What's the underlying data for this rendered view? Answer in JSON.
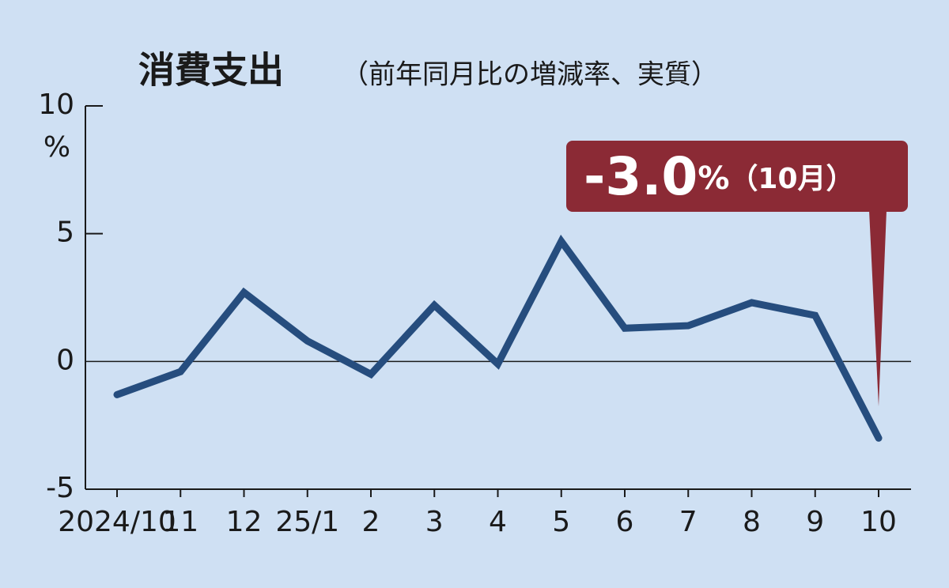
{
  "chart_data": {
    "type": "line",
    "title": "消費支出",
    "subtitle": "（前年同月比の増減率、実質）",
    "y_unit": "%",
    "categories": [
      "2024/10",
      "11",
      "12",
      "25/1",
      "2",
      "3",
      "4",
      "5",
      "6",
      "7",
      "8",
      "9",
      "10"
    ],
    "values": [
      -1.3,
      -0.4,
      2.7,
      0.8,
      -0.5,
      2.2,
      -0.1,
      4.7,
      1.3,
      1.4,
      2.3,
      1.8,
      -3.0
    ],
    "color": "#264d7e",
    "ylim": [
      -5,
      10
    ],
    "yticks": [
      -5,
      0,
      5,
      10
    ],
    "annotation": {
      "label": "-3.0",
      "unit": "%",
      "note": "（10月）",
      "color": "#8b2a35"
    }
  }
}
